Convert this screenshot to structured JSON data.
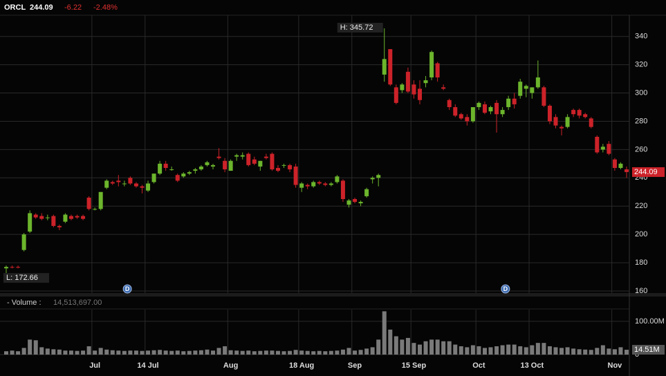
{
  "header": {
    "symbol": "ORCL",
    "price": "244.09",
    "change": "-6.22",
    "change_pct": "-2.48%"
  },
  "chart_data": [
    {
      "type": "candlestick",
      "categories": [
        null,
        null,
        null,
        null,
        null,
        null,
        null,
        null,
        null,
        null,
        null,
        null,
        null,
        null,
        null,
        "Jul",
        null,
        null,
        null,
        null,
        null,
        null,
        null,
        null,
        "14 Jul",
        null,
        null,
        null,
        null,
        null,
        null,
        null,
        null,
        null,
        null,
        null,
        null,
        null,
        "Aug",
        null,
        null,
        null,
        null,
        null,
        null,
        null,
        null,
        null,
        null,
        null,
        "18 Aug",
        null,
        null,
        null,
        null,
        null,
        null,
        null,
        null,
        "Sep",
        null,
        null,
        null,
        null,
        null,
        null,
        null,
        null,
        null,
        "15 Sep",
        null,
        null,
        null,
        null,
        null,
        null,
        null,
        null,
        null,
        null,
        "Oct",
        null,
        null,
        null,
        null,
        null,
        null,
        null,
        null,
        "13 Oct",
        null,
        null,
        null,
        null,
        null,
        null,
        null,
        null,
        null,
        null,
        null,
        null,
        null,
        "Nov",
        null,
        null
      ],
      "open": [
        176,
        177,
        177,
        189,
        202,
        214,
        213,
        212,
        213,
        206,
        209,
        213,
        213,
        213,
        226,
        218,
        218,
        233,
        237,
        238,
        236,
        240,
        236,
        234,
        231,
        237,
        243,
        250,
        246,
        242,
        241,
        243,
        245,
        246,
        249,
        248,
        255,
        252,
        245,
        255,
        255,
        257,
        253,
        248,
        255,
        257,
        247,
        249,
        249,
        248,
        233,
        235,
        234,
        237,
        236,
        235,
        237,
        238,
        221,
        225,
        222,
        227,
        239,
        240,
        313,
        331,
        304,
        302,
        315,
        306,
        303,
        307,
        311,
        321,
        304,
        295,
        290,
        285,
        283,
        280,
        290,
        292,
        287,
        293,
        285,
        290,
        296,
        298,
        303,
        300,
        304,
        304,
        291,
        283,
        276,
        276,
        288,
        288,
        285,
        282,
        269,
        260,
        264,
        253,
        247,
        246
      ],
      "high": [
        178,
        178,
        178,
        201,
        217,
        215,
        215,
        214,
        214,
        207,
        215,
        214,
        214,
        214,
        227,
        219,
        230,
        239,
        238,
        242,
        238,
        241,
        237,
        235,
        238,
        243,
        252,
        252,
        248,
        243,
        244,
        245,
        247,
        249,
        252,
        250,
        261,
        254,
        253,
        257,
        258,
        258,
        255,
        252,
        257,
        258,
        249,
        250,
        250,
        250,
        237,
        236,
        238,
        238,
        237,
        237,
        242,
        239,
        225,
        226,
        224,
        233,
        241,
        243,
        345.72,
        331,
        306,
        307,
        318,
        309,
        309,
        312,
        330,
        322,
        306,
        296,
        292,
        286,
        285,
        290,
        294,
        294,
        291,
        295,
        290,
        298,
        300,
        310,
        306,
        304,
        323,
        305,
        292,
        285,
        277,
        285,
        289,
        289,
        286,
        283,
        270,
        264,
        266,
        254,
        251,
        248
      ],
      "low": [
        172.66,
        176,
        176,
        188,
        201,
        211,
        210,
        210,
        205,
        203,
        208,
        210,
        211,
        210,
        217,
        217,
        217,
        232,
        235,
        234,
        234,
        235,
        233,
        229,
        230,
        236,
        242,
        245,
        245,
        237,
        240,
        242,
        243,
        245,
        248,
        246,
        253,
        244,
        245,
        252,
        253,
        248,
        249,
        245,
        253,
        245,
        244,
        247,
        244,
        233,
        230,
        232,
        233,
        235,
        234,
        234,
        236,
        223,
        219,
        222,
        220,
        226,
        236,
        234,
        308,
        305,
        292,
        300,
        300,
        296,
        292,
        304,
        309,
        308,
        302,
        288,
        283,
        281,
        277,
        279,
        288,
        285,
        285,
        272,
        283,
        288,
        289,
        296,
        297,
        296,
        303,
        290,
        278,
        275,
        270,
        275,
        283,
        282,
        282,
        275,
        257,
        258,
        256,
        245,
        246,
        240
      ],
      "close": [
        177,
        176.5,
        176.5,
        200,
        215,
        212,
        211,
        212,
        206,
        205,
        214,
        211,
        212,
        211,
        218,
        218,
        230,
        238,
        236,
        237,
        236,
        236,
        234,
        233,
        236,
        243,
        250,
        247,
        246,
        238,
        243,
        244,
        246,
        248,
        251,
        249,
        254,
        246,
        252,
        256,
        256,
        249,
        250,
        252,
        254,
        246,
        245,
        249,
        246,
        235,
        236,
        234,
        237,
        236,
        235,
        236,
        241,
        225,
        224,
        223,
        223,
        232,
        240,
        242,
        324,
        306,
        293,
        306,
        301,
        299,
        295,
        309,
        329,
        311,
        303,
        290,
        284,
        282,
        280,
        290,
        293,
        286,
        290,
        285,
        288,
        296,
        292,
        308,
        305,
        304,
        311,
        291,
        280,
        277,
        275,
        283,
        285,
        284,
        283,
        276,
        258,
        262,
        257,
        247,
        250,
        244.09
      ],
      "up_color": "#6cb52c",
      "down_color": "#cc2229",
      "ylim": [
        160,
        355
      ],
      "yticks": [
        160,
        180,
        200,
        220,
        240,
        260,
        280,
        300,
        320,
        340
      ],
      "grid": true,
      "annotations": [
        {
          "text": "H: 345.72",
          "index": 64,
          "value": 345.72
        },
        {
          "text": "L: 172.66",
          "index": 0,
          "value": 172.66
        }
      ],
      "markers": [
        {
          "text": "D",
          "index": 21
        },
        {
          "text": "D",
          "index": 85
        }
      ]
    },
    {
      "type": "bar",
      "title": "- Volume :",
      "volume_text": "14,513,697.00",
      "color": "#7a7a7a",
      "values": [
        10000000,
        12000000,
        10000000,
        20000000,
        45000000,
        43000000,
        22000000,
        18000000,
        16000000,
        15000000,
        12000000,
        12000000,
        11000000,
        12000000,
        25000000,
        12000000,
        20000000,
        15000000,
        13000000,
        12000000,
        11000000,
        12000000,
        12000000,
        11000000,
        12000000,
        13000000,
        14000000,
        12000000,
        11000000,
        12000000,
        10000000,
        11000000,
        12000000,
        13000000,
        15000000,
        12000000,
        20000000,
        25000000,
        13000000,
        12000000,
        11000000,
        12000000,
        10000000,
        11000000,
        12000000,
        12000000,
        11000000,
        10000000,
        11000000,
        14000000,
        12000000,
        11000000,
        10000000,
        11000000,
        10000000,
        11000000,
        12000000,
        15000000,
        20000000,
        12000000,
        14000000,
        18000000,
        22000000,
        45000000,
        130000000,
        75000000,
        55000000,
        45000000,
        50000000,
        35000000,
        30000000,
        40000000,
        45000000,
        45000000,
        40000000,
        40000000,
        30000000,
        25000000,
        22000000,
        28000000,
        25000000,
        20000000,
        22000000,
        25000000,
        28000000,
        30000000,
        30000000,
        25000000,
        22000000,
        28000000,
        35000000,
        35000000,
        25000000,
        22000000,
        20000000,
        22000000,
        18000000,
        16000000,
        15000000,
        14000000,
        20000000,
        28000000,
        18000000,
        16000000,
        22000000,
        14513697
      ],
      "value_labels": {
        "105": "14.51M"
      },
      "ylim": [
        0,
        135000000
      ],
      "yticks": [
        0,
        {
          "value": 100000000,
          "label": "100.00M"
        }
      ]
    }
  ]
}
